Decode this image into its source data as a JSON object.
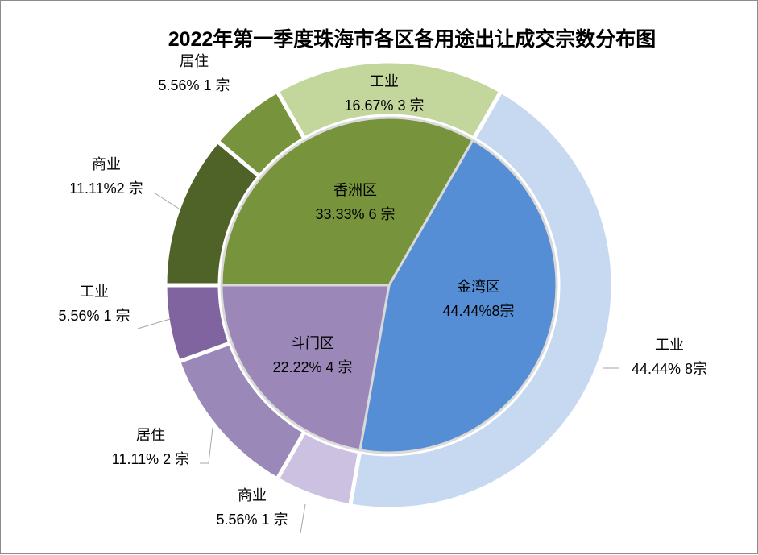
{
  "chart_data": {
    "type": "pie",
    "title": "2022年第一季度珠海市各区各用途出让成交宗数分布图",
    "inner": [
      {
        "name": "金湾区",
        "percent": "44.44%",
        "count": "8宗",
        "value": 8,
        "color": "#558ed5"
      },
      {
        "name": "斗门区",
        "percent": "22.22%",
        "count": "4 宗",
        "value": 4,
        "color": "#9b88b8"
      },
      {
        "name": "香洲区",
        "percent": "33.33%",
        "count": "6 宗",
        "value": 6,
        "color": "#77933c"
      }
    ],
    "outer": [
      {
        "name": "工业",
        "district": "金湾区",
        "percent": "44.44%",
        "count": "8宗",
        "value": 8,
        "color": "#c6d9f1"
      },
      {
        "name": "商业",
        "district": "斗门区",
        "percent": "5.56%",
        "count": "1 宗",
        "value": 1,
        "color": "#ccc1e1"
      },
      {
        "name": "居住",
        "district": "斗门区",
        "percent": "11.11%",
        "count": "2 宗",
        "value": 2,
        "color": "#9a88b9"
      },
      {
        "name": "工业",
        "district": "斗门区",
        "percent": "5.56%",
        "count": "1 宗",
        "value": 1,
        "color": "#7f64a0"
      },
      {
        "name": "商业",
        "district": "香洲区",
        "percent": "11.11%",
        "count": "2 宗",
        "value": 2,
        "color": "#4f6228"
      },
      {
        "name": "居住",
        "district": "香洲区",
        "percent": "5.56%",
        "count": "1 宗",
        "value": 1,
        "color": "#77933c"
      },
      {
        "name": "工业",
        "district": "香洲区",
        "percent": "16.67%",
        "count": "3 宗",
        "value": 3,
        "color": "#c3d69b"
      }
    ]
  }
}
